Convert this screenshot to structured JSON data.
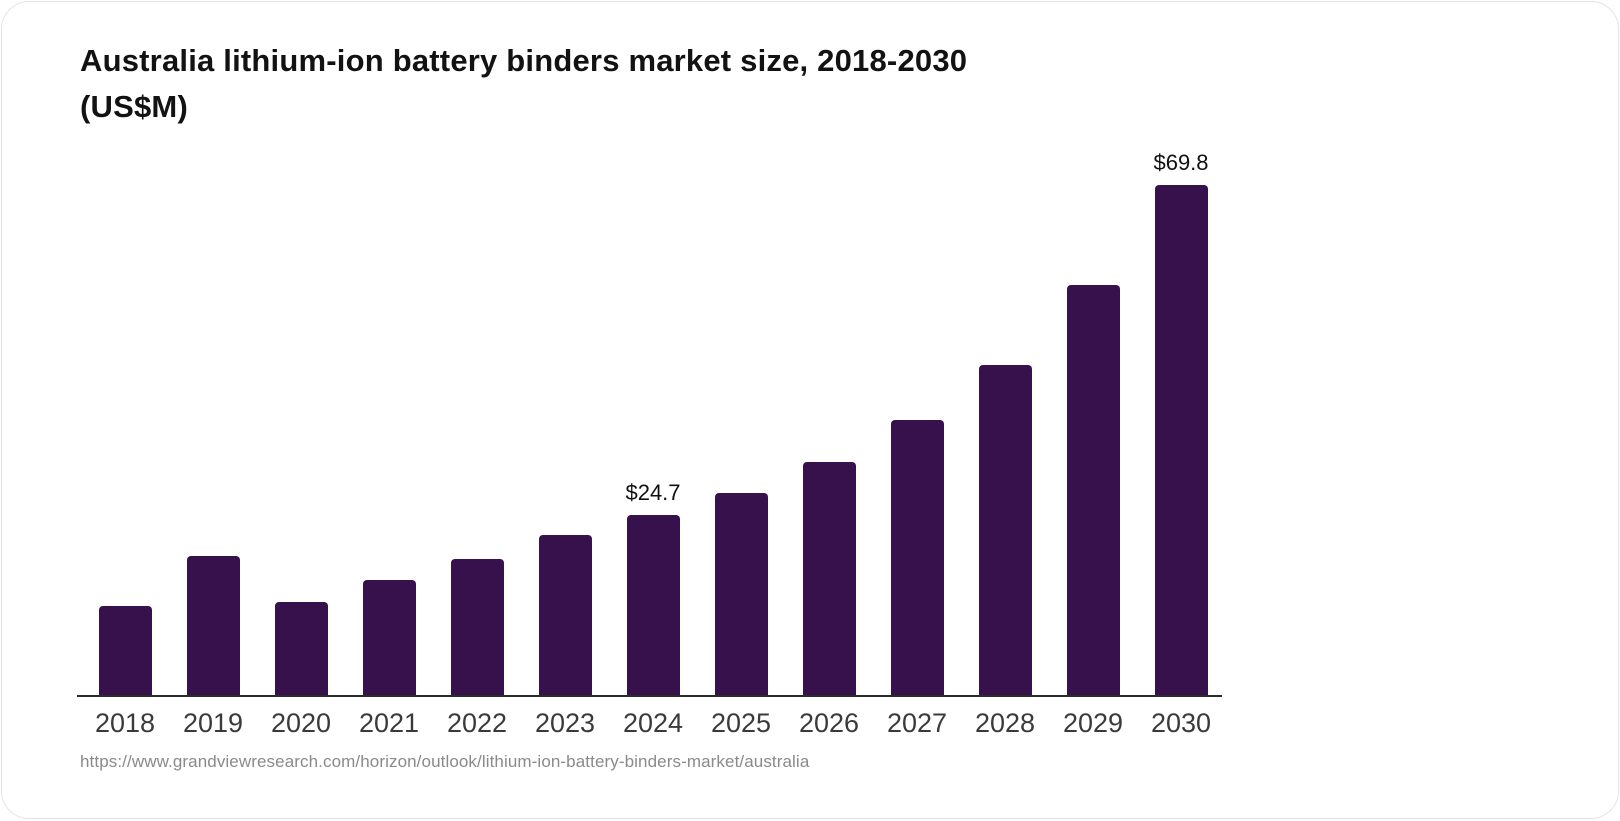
{
  "header": {
    "title_line1": "Australia lithium-ion battery binders market size, 2018-2030",
    "title_line2": "(US$M)"
  },
  "footer": {
    "source_url": "https://www.grandviewresearch.com/horizon/outlook/lithium-ion-battery-binders-market/australia"
  },
  "colors": {
    "bar": "#36114b",
    "axis_line": "#2b2b2b",
    "tick_text": "#3a3a3a",
    "title_text": "#121212",
    "source_text": "#8a8a8a",
    "background": "#ffffff"
  },
  "chart_data": {
    "type": "bar",
    "title": "Australia lithium-ion battery binders market size, 2018-2030 (US$M)",
    "xlabel": "",
    "ylabel": "US$M",
    "categories": [
      "2018",
      "2019",
      "2020",
      "2021",
      "2022",
      "2023",
      "2024",
      "2025",
      "2026",
      "2027",
      "2028",
      "2029",
      "2030"
    ],
    "values": [
      12.2,
      19.0,
      12.7,
      15.7,
      18.6,
      21.9,
      24.7,
      27.6,
      31.9,
      37.6,
      45.2,
      56.1,
      69.8
    ],
    "data_labels": [
      "",
      "",
      "",
      "",
      "",
      "",
      "$24.7",
      "",
      "",
      "",
      "",
      "",
      "$69.8"
    ],
    "ylim": [
      0,
      69.8
    ],
    "grid": false,
    "legend": false,
    "bar_color": "#36114b"
  }
}
